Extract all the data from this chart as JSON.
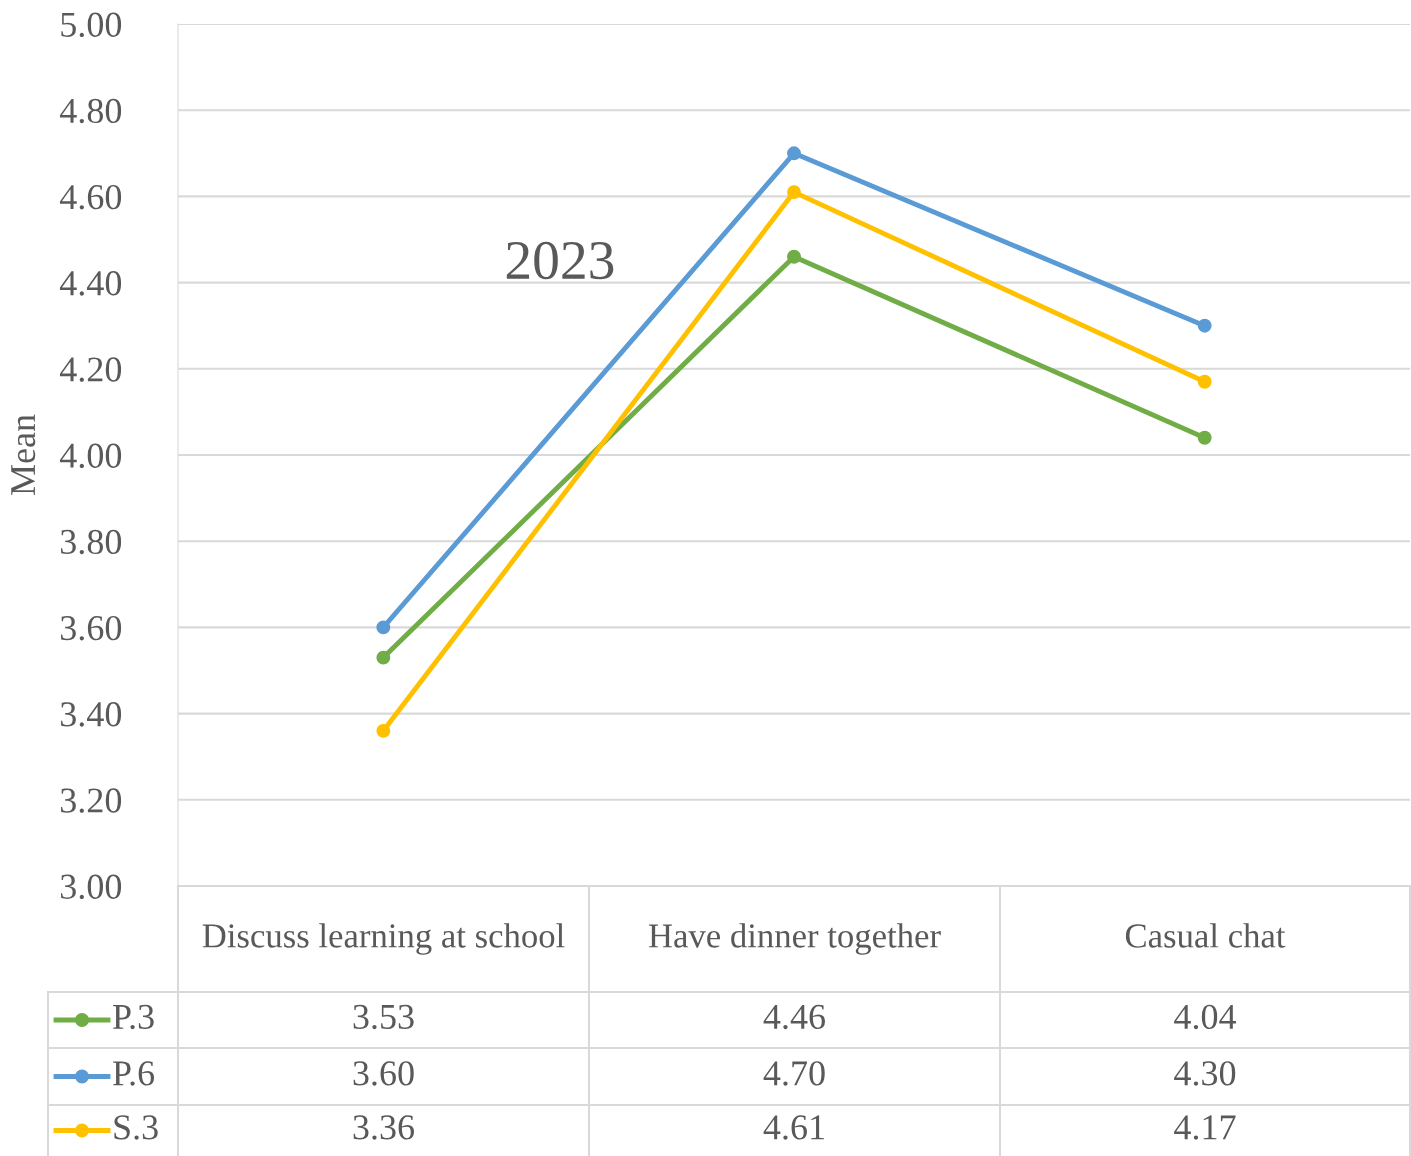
{
  "chart_data": {
    "type": "line",
    "title": "2023",
    "ylabel": "Mean",
    "categories": [
      "Discuss learning at school",
      "Have dinner together",
      "Casual chat"
    ],
    "series": [
      {
        "name": "P.3",
        "color": "#70ad47",
        "values": [
          3.53,
          4.46,
          4.04
        ],
        "value_labels": [
          "3.53",
          "4.46",
          "4.04"
        ]
      },
      {
        "name": "P.6",
        "color": "#5b9bd5",
        "values": [
          3.6,
          4.7,
          4.3
        ],
        "value_labels": [
          "3.60",
          "4.70",
          "4.30"
        ]
      },
      {
        "name": "S.3",
        "color": "#ffc000",
        "values": [
          3.36,
          4.61,
          4.17
        ],
        "value_labels": [
          "3.36",
          "4.61",
          "4.17"
        ]
      }
    ],
    "ylim": [
      3,
      5
    ],
    "yticks": [
      {
        "value": 3,
        "label": "3.00"
      },
      {
        "value": 3.2,
        "label": "3.20"
      },
      {
        "value": 3.4,
        "label": "3.40"
      },
      {
        "value": 3.6,
        "label": "3.60"
      },
      {
        "value": 3.8,
        "label": "3.80"
      },
      {
        "value": 4,
        "label": "4.00"
      },
      {
        "value": 4.2,
        "label": "4.20"
      },
      {
        "value": 4.4,
        "label": "4.40"
      },
      {
        "value": 4.6,
        "label": "4.60"
      },
      {
        "value": 4.8,
        "label": "4.80"
      },
      {
        "value": 5,
        "label": "5.00"
      }
    ],
    "grid": "y",
    "marker": "circle",
    "line_style": "solid",
    "legend": "bottom left"
  }
}
